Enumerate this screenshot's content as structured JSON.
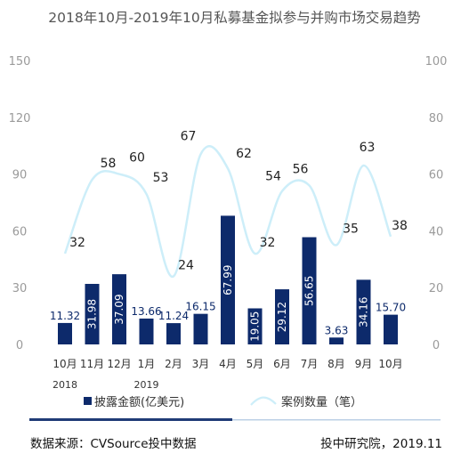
{
  "title": "2018年10月-2019年10月私募基金拟参与并购市场交易趋势",
  "footer": {
    "source": "数据来源：CVSource投中数据",
    "credit": "投中研究院，2019.11"
  },
  "colors": {
    "bar": "#0d2a6b",
    "line": "#cdeef9",
    "divider_dark": "#1f3b76",
    "divider_light": "#bcd0e6"
  },
  "chart_data": {
    "type": "bar",
    "categories": [
      "10月",
      "11月",
      "12月",
      "1月",
      "2月",
      "3月",
      "4月",
      "5月",
      "6月",
      "7月",
      "8月",
      "9月",
      "10月"
    ],
    "year_labels": [
      {
        "category_index": 0,
        "text": "2018"
      },
      {
        "category_index": 3,
        "text": "2019"
      }
    ],
    "series": [
      {
        "name": "披露金额(亿美元)",
        "type": "bar",
        "axis": "left",
        "values": [
          11.32,
          31.98,
          37.09,
          13.66,
          11.24,
          16.15,
          67.99,
          19.05,
          29.12,
          56.65,
          3.63,
          34.16,
          15.7
        ],
        "labels": [
          "11.32",
          "31.98",
          "37.09",
          "13.66",
          "11.24",
          "16.15",
          "67.99",
          "19.05",
          "29.12",
          "56.65",
          "3.63",
          "34.16",
          "15.70"
        ]
      },
      {
        "name": "案例数量（笔）",
        "type": "line",
        "smooth": true,
        "axis": "right",
        "values": [
          32,
          58,
          60,
          53,
          24,
          67,
          62,
          32,
          54,
          56,
          35,
          63,
          38
        ]
      }
    ],
    "ylim_left": [
      0,
      150
    ],
    "yticks_left": [
      0,
      30,
      60,
      90,
      120,
      150
    ],
    "ylim_right": [
      0,
      100
    ],
    "yticks_right": [
      0,
      20,
      40,
      60,
      80,
      100
    ],
    "grid": false,
    "legend_position": "bottom"
  }
}
